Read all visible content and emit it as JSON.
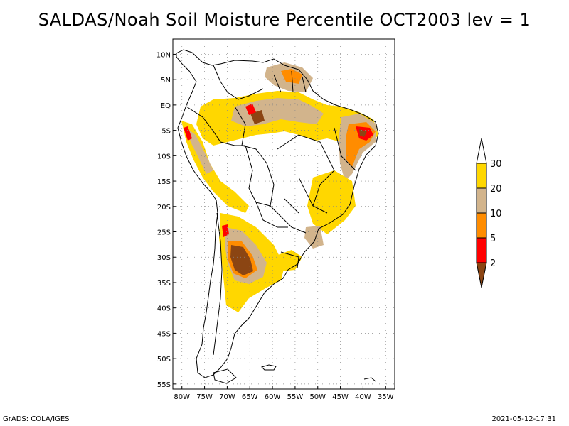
{
  "title": "SALDAS/Noah Soil Moisture Percentile OCT2003 lev = 1",
  "footer": {
    "left": "GrADS: COLA/IGES",
    "right": "2021-05-12-17:31"
  },
  "map": {
    "lat_range": [
      -56,
      13
    ],
    "lon_range": [
      -82,
      -33
    ],
    "lat_labels": [
      {
        "lat": 10,
        "text": "10N"
      },
      {
        "lat": 5,
        "text": "5N"
      },
      {
        "lat": 0,
        "text": "EQ"
      },
      {
        "lat": -5,
        "text": "5S"
      },
      {
        "lat": -10,
        "text": "10S"
      },
      {
        "lat": -15,
        "text": "15S"
      },
      {
        "lat": -20,
        "text": "20S"
      },
      {
        "lat": -25,
        "text": "25S"
      },
      {
        "lat": -30,
        "text": "30S"
      },
      {
        "lat": -35,
        "text": "35S"
      },
      {
        "lat": -40,
        "text": "40S"
      },
      {
        "lat": -45,
        "text": "45S"
      },
      {
        "lat": -50,
        "text": "50S"
      },
      {
        "lat": -55,
        "text": "55S"
      }
    ],
    "lon_labels": [
      {
        "lon": -80,
        "text": "80W"
      },
      {
        "lon": -75,
        "text": "75W"
      },
      {
        "lon": -70,
        "text": "70W"
      },
      {
        "lon": -65,
        "text": "65W"
      },
      {
        "lon": -60,
        "text": "60W"
      },
      {
        "lon": -55,
        "text": "55W"
      },
      {
        "lon": -50,
        "text": "50W"
      },
      {
        "lon": -45,
        "text": "45W"
      },
      {
        "lon": -40,
        "text": "40W"
      },
      {
        "lon": -35,
        "text": "35W"
      }
    ],
    "gridlines": "dotted"
  },
  "colorbar": {
    "levels": [
      "2",
      "5",
      "10",
      "20",
      "30"
    ],
    "colors": [
      "#8b4513",
      "#ff0000",
      "#ff8c00",
      "#d2b48c",
      "#ffd700",
      "#ffffff"
    ]
  }
}
